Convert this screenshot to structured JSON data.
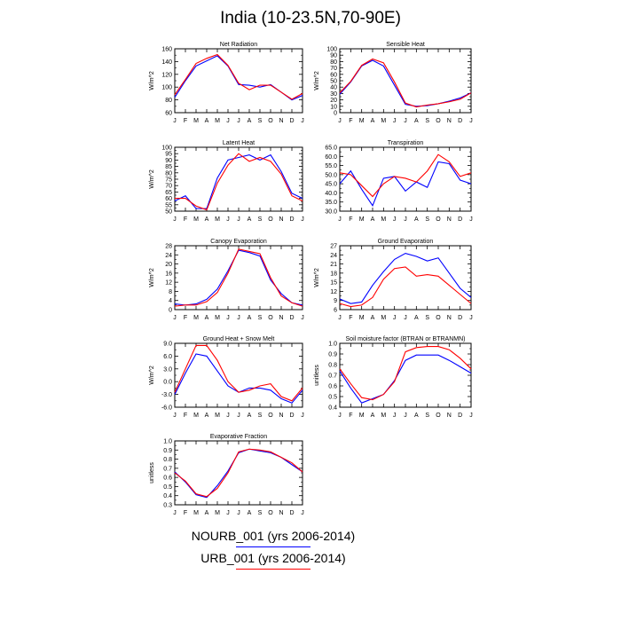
{
  "title": "India (10-23.5N,70-90E)",
  "legend": [
    {
      "label": "NOURB_001 (yrs 2006-2014)",
      "color": "#0000ff"
    },
    {
      "label": "URB_001 (yrs 2006-2014)",
      "color": "#ff0000"
    }
  ],
  "months": [
    "J",
    "F",
    "M",
    "A",
    "M",
    "J",
    "J",
    "A",
    "S",
    "O",
    "N",
    "D",
    "J"
  ],
  "chart_data": [
    {
      "type": "line",
      "title": "Net Radiation",
      "ylabel": "W/m^2",
      "ylim": [
        60,
        160
      ],
      "yticks": [
        "60",
        "80",
        "100",
        "120",
        "140",
        "160"
      ],
      "categories": [
        "J",
        "F",
        "M",
        "A",
        "M",
        "J",
        "J",
        "A",
        "S",
        "O",
        "N",
        "D",
        "J"
      ],
      "series": [
        {
          "name": "NOURB_001 (yrs 2006-2014)",
          "color": "#0000ff",
          "values": [
            84,
            110,
            133,
            141,
            149,
            133,
            104,
            103,
            100,
            104,
            92,
            80,
            87
          ]
        },
        {
          "name": "URB_001 (yrs 2006-2014)",
          "color": "#ff0000",
          "values": [
            88,
            112,
            137,
            145,
            151,
            134,
            106,
            96,
            103,
            103,
            92,
            81,
            90
          ]
        }
      ]
    },
    {
      "type": "line",
      "title": "Sensible Heat",
      "ylabel": "W/m^2",
      "ylim": [
        0,
        100
      ],
      "yticks": [
        "0",
        "10",
        "20",
        "30",
        "40",
        "50",
        "60",
        "70",
        "80",
        "90",
        "100"
      ],
      "categories": [
        "J",
        "F",
        "M",
        "A",
        "M",
        "J",
        "J",
        "A",
        "S",
        "O",
        "N",
        "D",
        "J"
      ],
      "series": [
        {
          "name": "NOURB_001 (yrs 2006-2014)",
          "color": "#0000ff",
          "values": [
            29,
            48,
            73,
            82,
            73,
            43,
            13,
            10,
            11,
            14,
            18,
            23,
            31
          ]
        },
        {
          "name": "URB_001 (yrs 2006-2014)",
          "color": "#ff0000",
          "values": [
            31,
            49,
            74,
            84,
            78,
            48,
            15,
            9,
            12,
            14,
            17,
            21,
            31
          ]
        }
      ]
    },
    {
      "type": "line",
      "title": "Latent Heat",
      "ylabel": "W/m^2",
      "ylim": [
        50,
        100
      ],
      "yticks": [
        "50",
        "55",
        "60",
        "65",
        "70",
        "75",
        "80",
        "85",
        "90",
        "95",
        "100"
      ],
      "categories": [
        "J",
        "F",
        "M",
        "A",
        "M",
        "J",
        "J",
        "A",
        "S",
        "O",
        "N",
        "D",
        "J"
      ],
      "series": [
        {
          "name": "NOURB_001 (yrs 2006-2014)",
          "color": "#0000ff",
          "values": [
            58,
            62,
            52,
            52,
            76,
            90,
            92,
            94,
            90,
            94,
            81,
            64,
            60
          ]
        },
        {
          "name": "URB_001 (yrs 2006-2014)",
          "color": "#ff0000",
          "values": [
            60,
            60,
            54,
            51,
            72,
            86,
            95,
            89,
            92,
            89,
            79,
            62,
            58
          ]
        }
      ]
    },
    {
      "type": "line",
      "title": "Transpiration",
      "ylabel": "",
      "ylim": [
        30,
        65
      ],
      "yticks": [
        "30.0",
        "35.0",
        "40.0",
        "45.0",
        "50.0",
        "55.0",
        "60.0",
        "65.0"
      ],
      "categories": [
        "J",
        "F",
        "M",
        "A",
        "M",
        "J",
        "J",
        "A",
        "S",
        "O",
        "N",
        "D",
        "J"
      ],
      "series": [
        {
          "name": "NOURB_001 (yrs 2006-2014)",
          "color": "#0000ff",
          "values": [
            45,
            52,
            42,
            33,
            48,
            49,
            41,
            46,
            43,
            57,
            56,
            47,
            45
          ]
        },
        {
          "name": "URB_001 (yrs 2006-2014)",
          "color": "#ff0000",
          "values": [
            51,
            50,
            44,
            38,
            45,
            49,
            48,
            46,
            52,
            61,
            57,
            49,
            51
          ]
        }
      ]
    },
    {
      "type": "line",
      "title": "Canopy Evaporation",
      "ylabel": "W/m^2",
      "ylim": [
        0,
        28
      ],
      "yticks": [
        "0",
        "4",
        "8",
        "12",
        "16",
        "20",
        "24",
        "28"
      ],
      "categories": [
        "J",
        "F",
        "M",
        "A",
        "M",
        "J",
        "J",
        "A",
        "S",
        "O",
        "N",
        "D",
        "J"
      ],
      "series": [
        {
          "name": "NOURB_001 (yrs 2006-2014)",
          "color": "#0000ff",
          "values": [
            2.5,
            2,
            2.5,
            4.5,
            9,
            17,
            26,
            25,
            23.5,
            13,
            7,
            3,
            2
          ]
        },
        {
          "name": "URB_001 (yrs 2006-2014)",
          "color": "#ff0000",
          "values": [
            1.5,
            2,
            2,
            3.5,
            7.5,
            16,
            26.5,
            25.5,
            24.5,
            14,
            6,
            3,
            1.5
          ]
        }
      ]
    },
    {
      "type": "line",
      "title": "Ground Evaporation",
      "ylabel": "W/m^2",
      "ylim": [
        6,
        27
      ],
      "yticks": [
        "6",
        "9",
        "12",
        "15",
        "18",
        "21",
        "24",
        "27"
      ],
      "categories": [
        "J",
        "F",
        "M",
        "A",
        "M",
        "J",
        "J",
        "A",
        "S",
        "O",
        "N",
        "D",
        "J"
      ],
      "series": [
        {
          "name": "NOURB_001 (yrs 2006-2014)",
          "color": "#0000ff",
          "values": [
            9.5,
            8,
            8.5,
            14,
            18.5,
            22.5,
            24.5,
            23.5,
            22,
            23,
            18,
            13,
            10
          ]
        },
        {
          "name": "URB_001 (yrs 2006-2014)",
          "color": "#ff0000",
          "values": [
            8,
            7,
            7.5,
            10,
            16,
            19.5,
            20,
            17,
            17.5,
            17,
            14,
            11,
            8
          ]
        }
      ]
    },
    {
      "type": "line",
      "title": "Ground Heat + Snow Melt",
      "ylabel": "W/m^2",
      "ylim": [
        -6,
        9
      ],
      "yticks": [
        "-6.0",
        "-3.0",
        "0.0",
        "3.0",
        "6.0",
        "9.0"
      ],
      "categories": [
        "J",
        "F",
        "M",
        "A",
        "M",
        "J",
        "J",
        "A",
        "S",
        "O",
        "N",
        "D",
        "J"
      ],
      "series": [
        {
          "name": "NOURB_001 (yrs 2006-2014)",
          "color": "#0000ff",
          "values": [
            -3,
            2,
            6.5,
            6,
            2.5,
            -1,
            -2.5,
            -1.5,
            -1.5,
            -2,
            -4,
            -5,
            -2
          ]
        },
        {
          "name": "URB_001 (yrs 2006-2014)",
          "color": "#ff0000",
          "values": [
            -2.5,
            3,
            8.5,
            8.5,
            5,
            0,
            -2.5,
            -2,
            -1,
            -0.5,
            -3.5,
            -4.5,
            -1.5
          ]
        }
      ]
    },
    {
      "type": "line",
      "title": "Soil moisture factor (BTRAN or BTRANMN)",
      "ylabel": "unitless",
      "ylim": [
        0.4,
        1.0
      ],
      "yticks": [
        "0.4",
        "0.5",
        "0.6",
        "0.7",
        "0.8",
        "0.9",
        "1.0"
      ],
      "categories": [
        "J",
        "F",
        "M",
        "A",
        "M",
        "J",
        "J",
        "A",
        "S",
        "O",
        "N",
        "D",
        "J"
      ],
      "series": [
        {
          "name": "NOURB_001 (yrs 2006-2014)",
          "color": "#0000ff",
          "values": [
            0.74,
            0.58,
            0.44,
            0.48,
            0.52,
            0.65,
            0.84,
            0.89,
            0.89,
            0.89,
            0.84,
            0.78,
            0.72
          ]
        },
        {
          "name": "URB_001 (yrs 2006-2014)",
          "color": "#ff0000",
          "values": [
            0.76,
            0.62,
            0.49,
            0.47,
            0.52,
            0.64,
            0.92,
            0.96,
            0.97,
            0.97,
            0.94,
            0.86,
            0.76
          ]
        }
      ]
    },
    {
      "type": "line",
      "title": "Evaporative Fraction",
      "ylabel": "unitless",
      "ylim": [
        0.3,
        1.0
      ],
      "yticks": [
        "0.3",
        "0.4",
        "0.5",
        "0.6",
        "0.7",
        "0.8",
        "0.9",
        "1.0"
      ],
      "categories": [
        "J",
        "F",
        "M",
        "A",
        "M",
        "J",
        "J",
        "A",
        "S",
        "O",
        "N",
        "D",
        "J"
      ],
      "series": [
        {
          "name": "NOURB_001 (yrs 2006-2014)",
          "color": "#0000ff",
          "values": [
            0.66,
            0.55,
            0.41,
            0.38,
            0.51,
            0.67,
            0.87,
            0.91,
            0.89,
            0.87,
            0.82,
            0.74,
            0.66
          ]
        },
        {
          "name": "URB_001 (yrs 2006-2014)",
          "color": "#ff0000",
          "values": [
            0.65,
            0.56,
            0.42,
            0.39,
            0.48,
            0.65,
            0.88,
            0.91,
            0.9,
            0.88,
            0.82,
            0.76,
            0.66
          ]
        }
      ]
    }
  ]
}
